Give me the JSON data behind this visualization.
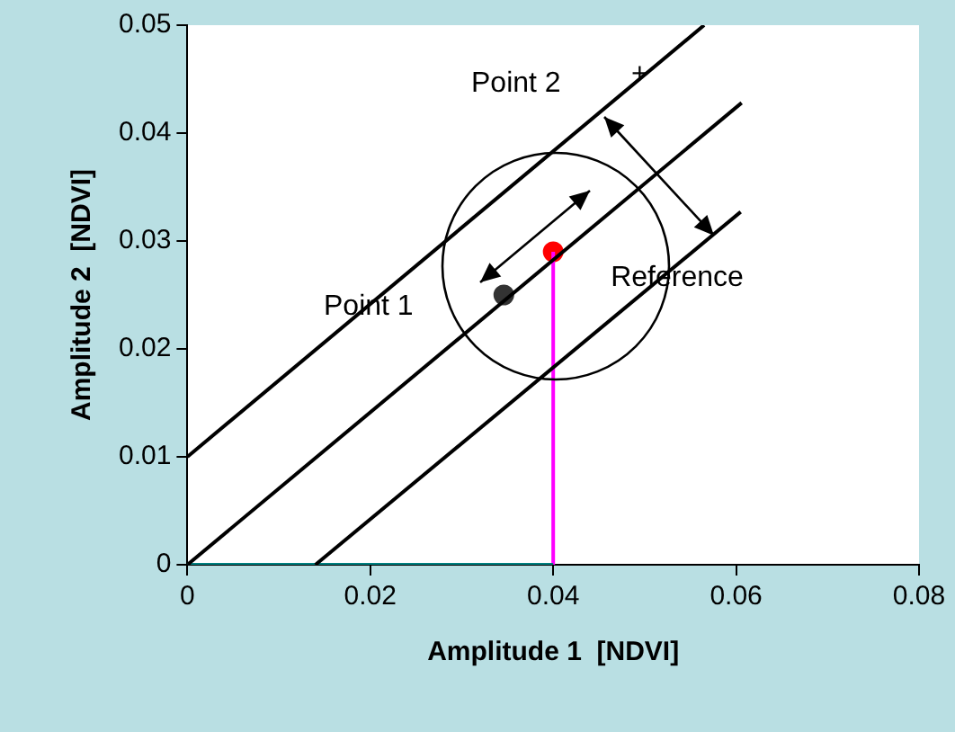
{
  "chart_data": {
    "type": "line",
    "xlabel": "Amplitude 1  [NDVI]",
    "ylabel": "Amplitude 2  [NDVI]",
    "xlim": [
      0,
      0.08
    ],
    "xticks": [
      0,
      0.02,
      0.04,
      0.06,
      0.08
    ],
    "ylim": [
      0,
      0.05
    ],
    "yticks": [
      0,
      0.01,
      0.02,
      0.03,
      0.04,
      0.05
    ],
    "grid": false,
    "legend": false,
    "marker": "none",
    "line_style": "solid",
    "series": [
      {
        "color": "#000000",
        "x": [
          0,
          0.0606
        ],
        "values": [
          0,
          0.0428
        ]
      },
      {
        "color": "#000000",
        "x": [
          0,
          0.0565
        ],
        "values": [
          0.01,
          0.05
        ]
      },
      {
        "color": "#000000",
        "x": [
          0.014,
          0.0605
        ],
        "values": [
          0,
          0.0327
        ]
      },
      {
        "color": "#008080",
        "x": [
          0,
          0.04
        ],
        "values": [
          0,
          0
        ]
      },
      {
        "color": "#ff00ff",
        "x": [
          0.04,
          0.04
        ],
        "values": [
          0,
          0.029
        ]
      },
      {
        "type": "scatter",
        "color": "#333333",
        "marker": "circle",
        "x": [
          0.0346
        ],
        "values": [
          0.025
        ]
      },
      {
        "type": "scatter",
        "color": "#ff0000",
        "marker": "circle",
        "x": [
          0.04
        ],
        "values": [
          0.029
        ]
      }
    ],
    "annotations": [
      "Point 1",
      "Point 2",
      {
        "text": "Reference",
        "x": 0.04,
        "y": 0.029
      },
      "+"
    ]
  }
}
